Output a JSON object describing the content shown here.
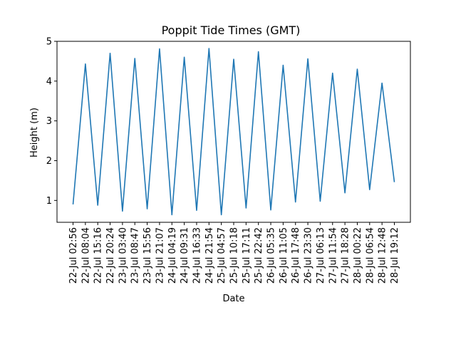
{
  "chart_data": {
    "type": "line",
    "title": "Poppit Tide Times (GMT)",
    "xlabel": "Date",
    "ylabel": "Height (m)",
    "ylim": [
      0.45,
      5.0
    ],
    "yticks": [
      1,
      2,
      3,
      4,
      5
    ],
    "grid": false,
    "line_color": "#1f77b4",
    "x": [
      "22-Jul 02:56",
      "22-Jul 08:04",
      "22-Jul 15:16",
      "22-Jul 20:24",
      "23-Jul 03:40",
      "23-Jul 08:47",
      "23-Jul 15:56",
      "23-Jul 21:07",
      "24-Jul 04:19",
      "24-Jul 09:31",
      "24-Jul 16:33",
      "24-Jul 21:54",
      "25-Jul 04:57",
      "25-Jul 10:18",
      "25-Jul 17:11",
      "25-Jul 22:42",
      "26-Jul 05:35",
      "26-Jul 11:05",
      "26-Jul 17:48",
      "26-Jul 23:30",
      "27-Jul 06:13",
      "27-Jul 11:54",
      "27-Jul 18:28",
      "28-Jul 00:22",
      "28-Jul 06:54",
      "28-Jul 12:48",
      "28-Jul 19:12"
    ],
    "values": [
      0.9,
      4.43,
      0.88,
      4.7,
      0.73,
      4.57,
      0.79,
      4.81,
      0.64,
      4.6,
      0.75,
      4.82,
      0.64,
      4.55,
      0.81,
      4.74,
      0.76,
      4.4,
      0.96,
      4.56,
      0.98,
      4.2,
      1.19,
      4.3,
      1.27,
      3.95,
      1.46
    ]
  }
}
